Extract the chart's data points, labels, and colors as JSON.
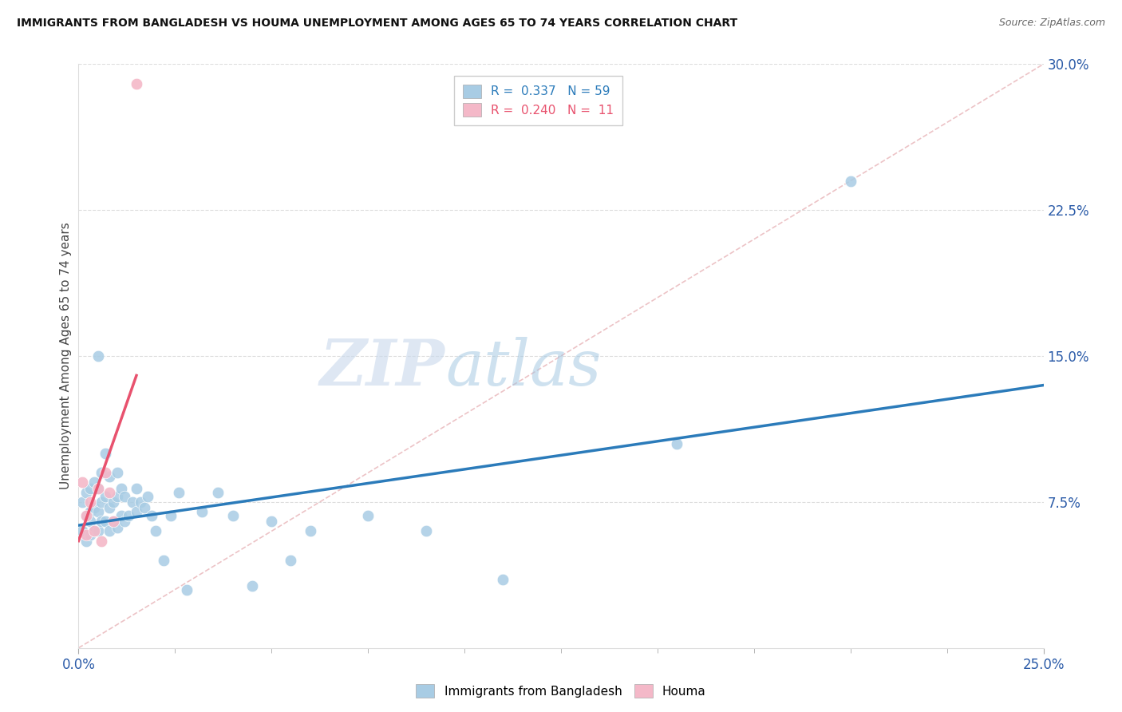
{
  "title": "IMMIGRANTS FROM BANGLADESH VS HOUMA UNEMPLOYMENT AMONG AGES 65 TO 74 YEARS CORRELATION CHART",
  "source": "Source: ZipAtlas.com",
  "ylabel": "Unemployment Among Ages 65 to 74 years",
  "ytick_labels": [
    "7.5%",
    "15.0%",
    "22.5%",
    "30.0%"
  ],
  "ytick_values": [
    0.075,
    0.15,
    0.225,
    0.3
  ],
  "xmin": 0.0,
  "xmax": 0.25,
  "ymin": 0.0,
  "ymax": 0.3,
  "legend1_R": "0.337",
  "legend1_N": "59",
  "legend2_R": "0.240",
  "legend2_N": "11",
  "blue_color": "#a8cce4",
  "pink_color": "#f4b8c8",
  "blue_line_color": "#2b7bba",
  "pink_line_color": "#e8526e",
  "ref_line_color": "#e8b4b8",
  "watermark_zip": "ZIP",
  "watermark_atlas": "atlas",
  "blue_scatter_x": [
    0.001,
    0.001,
    0.002,
    0.002,
    0.002,
    0.003,
    0.003,
    0.003,
    0.003,
    0.004,
    0.004,
    0.004,
    0.005,
    0.005,
    0.005,
    0.005,
    0.006,
    0.006,
    0.006,
    0.007,
    0.007,
    0.007,
    0.008,
    0.008,
    0.008,
    0.009,
    0.009,
    0.01,
    0.01,
    0.01,
    0.011,
    0.011,
    0.012,
    0.012,
    0.013,
    0.014,
    0.015,
    0.015,
    0.016,
    0.017,
    0.018,
    0.019,
    0.02,
    0.022,
    0.024,
    0.026,
    0.028,
    0.032,
    0.036,
    0.04,
    0.045,
    0.05,
    0.055,
    0.06,
    0.075,
    0.09,
    0.11,
    0.155,
    0.2
  ],
  "blue_scatter_y": [
    0.06,
    0.075,
    0.055,
    0.068,
    0.08,
    0.058,
    0.07,
    0.082,
    0.065,
    0.06,
    0.072,
    0.085,
    0.06,
    0.07,
    0.082,
    0.15,
    0.065,
    0.075,
    0.09,
    0.065,
    0.078,
    0.1,
    0.06,
    0.072,
    0.088,
    0.065,
    0.075,
    0.062,
    0.078,
    0.09,
    0.068,
    0.082,
    0.065,
    0.078,
    0.068,
    0.075,
    0.07,
    0.082,
    0.075,
    0.072,
    0.078,
    0.068,
    0.06,
    0.045,
    0.068,
    0.08,
    0.03,
    0.07,
    0.08,
    0.068,
    0.032,
    0.065,
    0.045,
    0.06,
    0.068,
    0.06,
    0.035,
    0.105,
    0.24
  ],
  "pink_scatter_x": [
    0.001,
    0.002,
    0.002,
    0.003,
    0.004,
    0.005,
    0.006,
    0.007,
    0.008,
    0.009,
    0.015
  ],
  "pink_scatter_y": [
    0.085,
    0.068,
    0.058,
    0.075,
    0.06,
    0.082,
    0.055,
    0.09,
    0.08,
    0.065,
    0.29
  ],
  "blue_line_x": [
    0.0,
    0.25
  ],
  "blue_line_y": [
    0.063,
    0.135
  ],
  "pink_line_x": [
    0.0,
    0.015
  ],
  "pink_line_y": [
    0.055,
    0.14
  ],
  "ref_line_x": [
    0.0,
    0.25
  ],
  "ref_line_y": [
    0.0,
    0.3
  ],
  "xtick_minor_values": [
    0.025,
    0.05,
    0.075,
    0.1,
    0.125,
    0.15,
    0.175,
    0.2,
    0.225
  ]
}
